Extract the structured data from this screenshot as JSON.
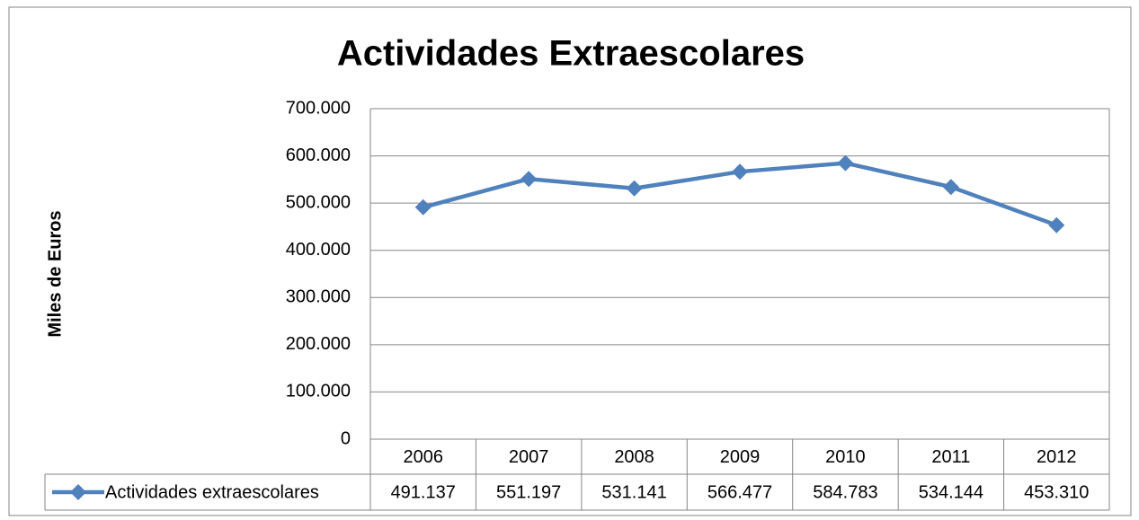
{
  "chart_data": {
    "type": "line",
    "title": "Actividades Extraescolares",
    "y_label": "Miles de Euros",
    "categories": [
      "2006",
      "2007",
      "2008",
      "2009",
      "2010",
      "2011",
      "2012"
    ],
    "series": [
      {
        "name": "Actividades extraescolares",
        "color": "#4f81bd",
        "values": [
          491137,
          551197,
          531141,
          566477,
          584783,
          534144,
          453310
        ],
        "value_labels": [
          "491.137",
          "551.197",
          "531.141",
          "566.477",
          "584.783",
          "534.144",
          "453.310"
        ]
      }
    ],
    "ylim": [
      0,
      700000
    ],
    "yticks": [
      0,
      {
        "value": 100000,
        "label": "100.000"
      },
      {
        "value": 200000,
        "label": "200.000"
      },
      {
        "value": 300000,
        "label": "300.000"
      },
      {
        "value": 400000,
        "label": "400.000"
      },
      {
        "value": 500000,
        "label": "500.000"
      },
      {
        "value": 600000,
        "label": "600.000"
      },
      {
        "value": 700000,
        "label": "700.000"
      }
    ],
    "grid": true,
    "data_table": true
  }
}
